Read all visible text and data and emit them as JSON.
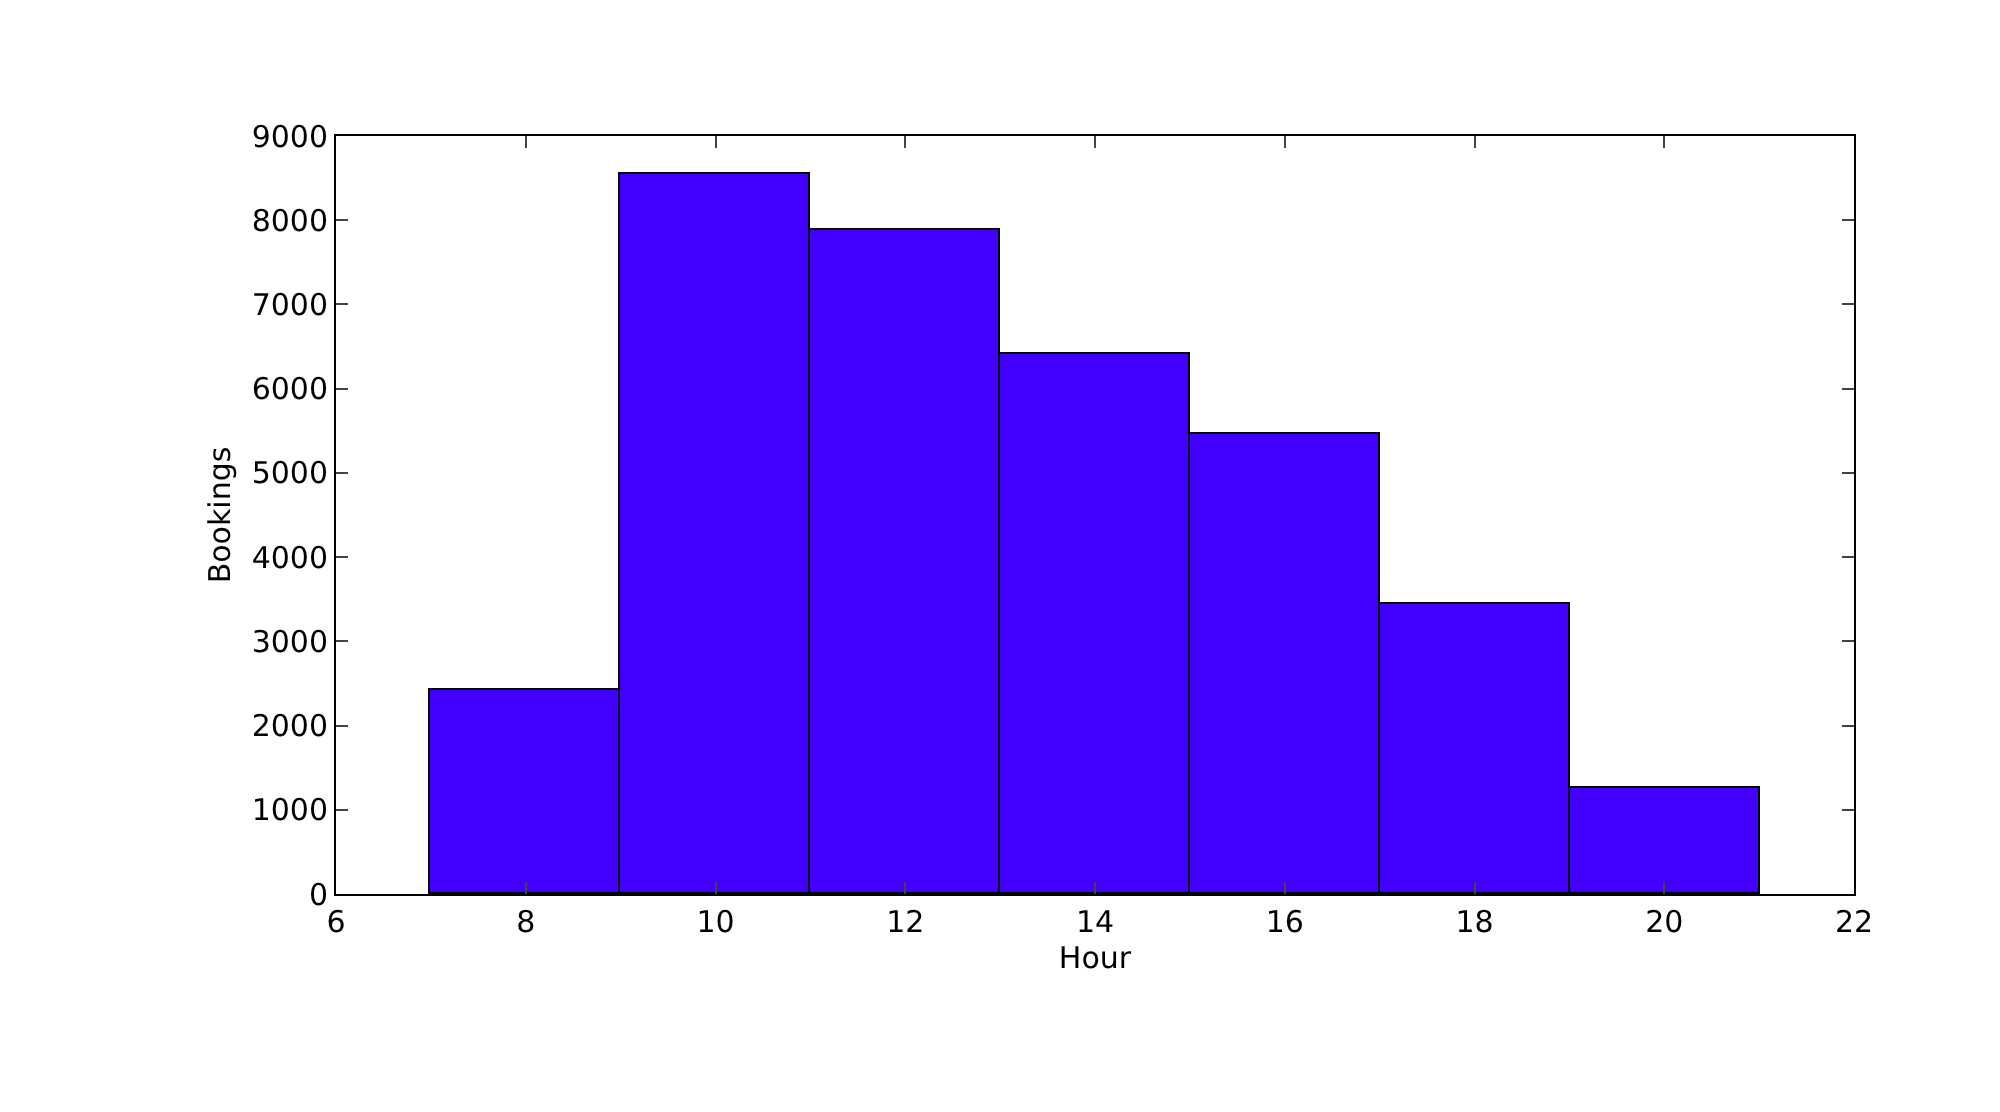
{
  "chart_data": {
    "type": "histogram",
    "xlabel": "Hour",
    "ylabel": "Bookings",
    "bins": [
      7,
      9,
      11,
      13,
      15,
      17,
      19,
      21
    ],
    "values": [
      2430,
      8550,
      7880,
      6400,
      5450,
      3440,
      1260
    ],
    "color": "#4400ff",
    "xlim": [
      6,
      22
    ],
    "xticks": [
      6,
      8,
      10,
      12,
      14,
      16,
      18,
      20,
      22
    ],
    "yticks": [
      0,
      1000,
      2000,
      3000,
      4000,
      5000,
      6000,
      7000,
      8000,
      9000
    ],
    "ylim": [
      0,
      9000
    ]
  }
}
